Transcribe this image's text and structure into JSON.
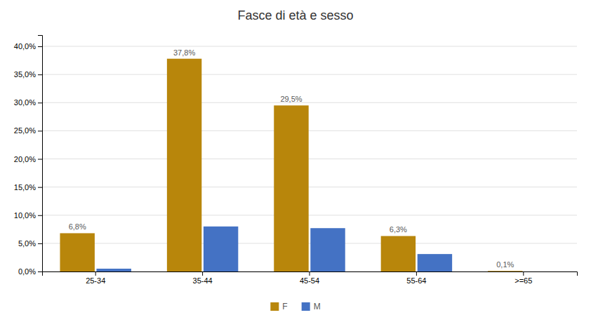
{
  "chart_data": {
    "type": "bar",
    "title": "Fasce di età e sesso",
    "categories": [
      "25-34",
      "35-44",
      "45-54",
      "55-64",
      ">=65"
    ],
    "series": [
      {
        "name": "F",
        "color": "#B8860B",
        "values": [
          6.8,
          37.8,
          29.5,
          6.3,
          0.1
        ],
        "data_labels": true,
        "value_labels": [
          "6,8%",
          "37,8%",
          "29,5%",
          "6,3%",
          "0,1%"
        ]
      },
      {
        "name": "M",
        "color": "#4472C4",
        "values": [
          0.5,
          8.0,
          7.7,
          3.1,
          0.0
        ]
      }
    ],
    "ylim": [
      0,
      42
    ],
    "yticks": [
      {
        "value": 0.0,
        "label": "0,0%"
      },
      {
        "value": 5.0,
        "label": "5,0%"
      },
      {
        "value": 10.0,
        "label": "10,0%"
      },
      {
        "value": 15.0,
        "label": "15,0%"
      },
      {
        "value": 20.0,
        "label": "20,0%"
      },
      {
        "value": 25.0,
        "label": "25,0%"
      },
      {
        "value": 30.0,
        "label": "30,0%"
      },
      {
        "value": 35.0,
        "label": "35,0%"
      },
      {
        "value": 40.0,
        "label": "40,0%"
      }
    ],
    "grid": true,
    "legend": "bottom"
  }
}
